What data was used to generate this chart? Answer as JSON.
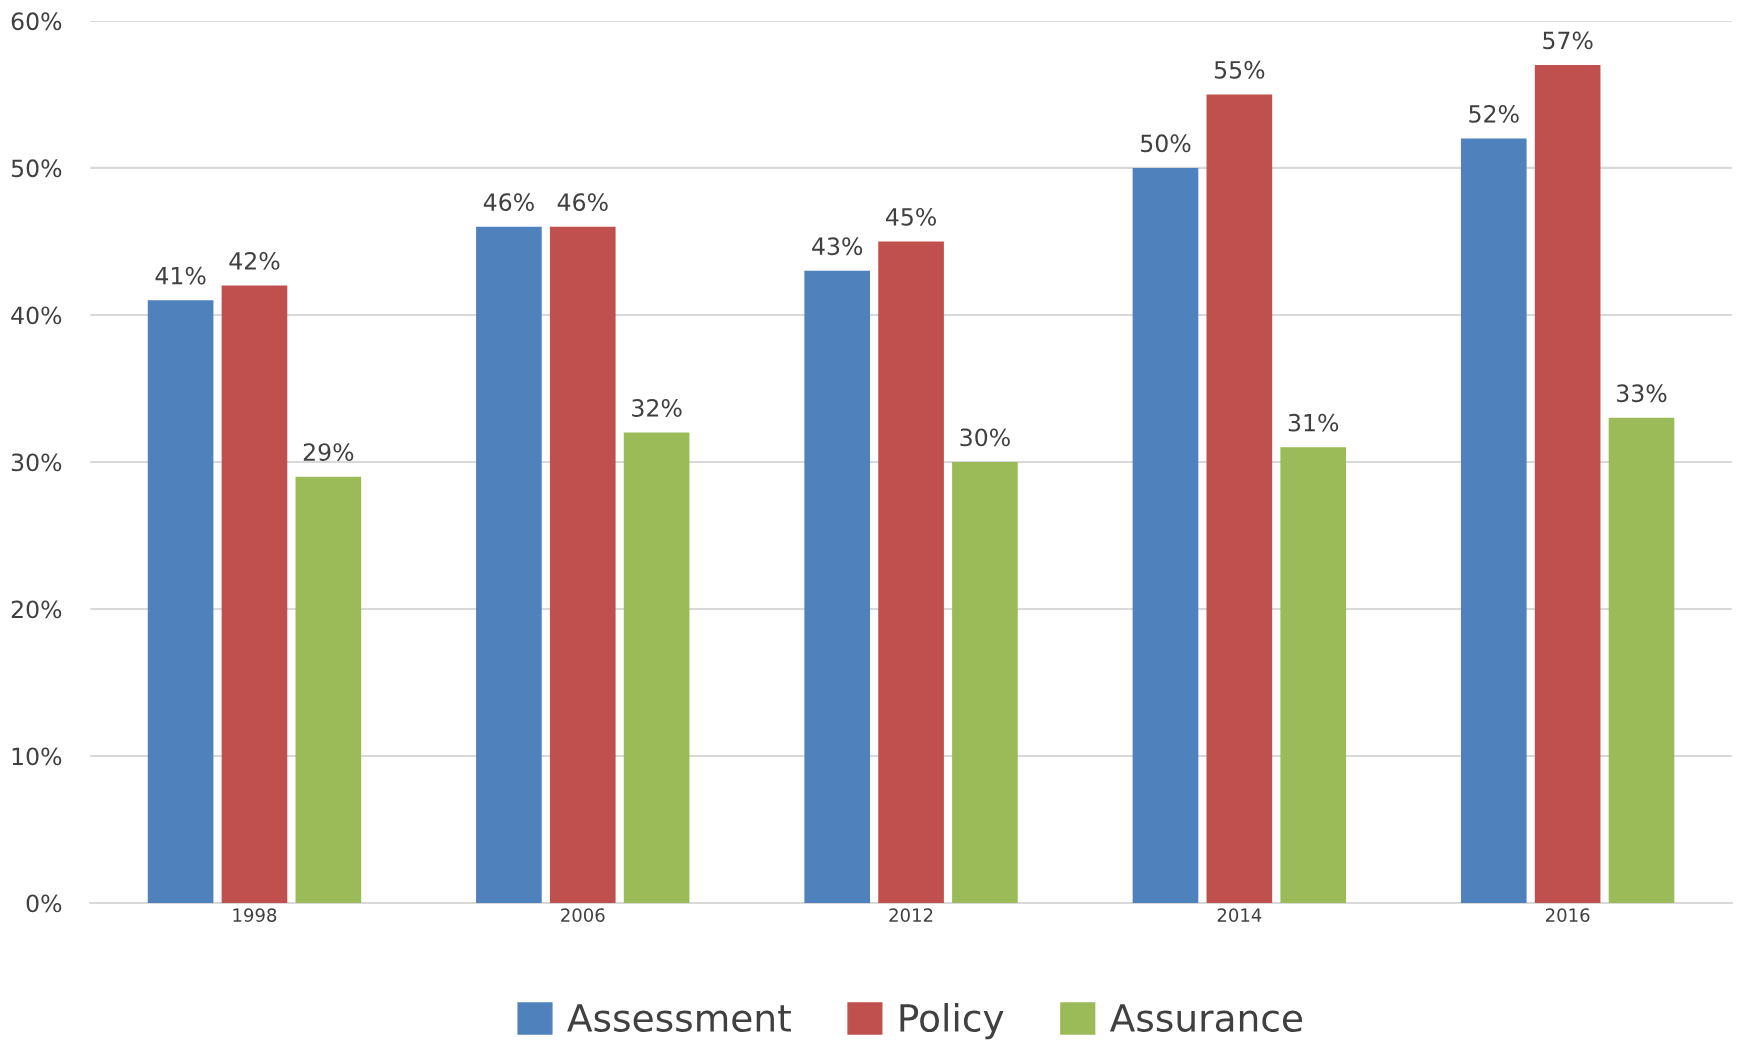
{
  "chart_data": {
    "type": "bar",
    "categories": [
      "1998",
      "2006",
      "2012",
      "2014",
      "2016"
    ],
    "series": [
      {
        "name": "Assessment",
        "color": "#4f81bd",
        "values": [
          41,
          46,
          43,
          50,
          52
        ],
        "value_labels": [
          "41%",
          "46%",
          "43%",
          "50%",
          "52%"
        ]
      },
      {
        "name": "Policy",
        "color": "#c0504d",
        "values": [
          42,
          46,
          45,
          55,
          57
        ],
        "value_labels": [
          "42%",
          "46%",
          "45%",
          "55%",
          "57%"
        ]
      },
      {
        "name": "Assurance",
        "color": "#9bbb59",
        "values": [
          29,
          32,
          30,
          31,
          33
        ],
        "value_labels": [
          "29%",
          "32%",
          "30%",
          "31%",
          "33%"
        ]
      }
    ],
    "ylim": [
      0,
      60
    ],
    "yticks": [
      {
        "value": 0,
        "label": "0%"
      },
      {
        "value": 10,
        "label": "10%"
      },
      {
        "value": 20,
        "label": "20%"
      },
      {
        "value": 30,
        "label": "30%"
      },
      {
        "value": 40,
        "label": "40%"
      },
      {
        "value": 50,
        "label": "50%"
      },
      {
        "value": 60,
        "label": "60%"
      }
    ],
    "grid": "y",
    "legend": "bottom"
  }
}
